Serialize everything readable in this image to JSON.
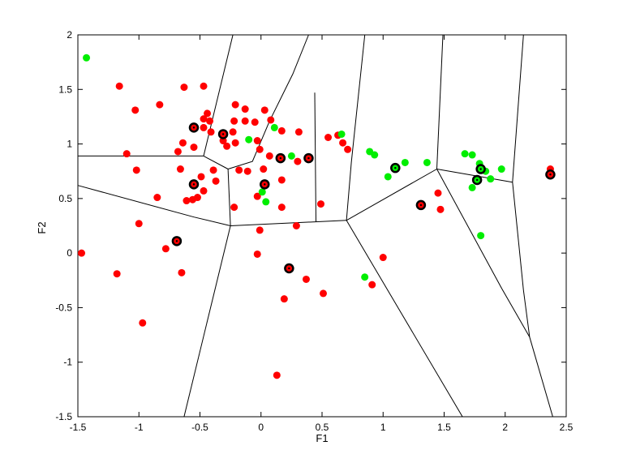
{
  "figure": {
    "background_color": "#FFFFFF",
    "plot_background_color": "#FFFFFF",
    "axis_color": "#000000"
  },
  "chart_data": {
    "type": "scatter",
    "title": "",
    "xlabel": "F1",
    "ylabel": "F2",
    "xlim": [
      -1.5,
      2.5
    ],
    "ylim": [
      -1.5,
      2
    ],
    "x_ticks": [
      -1.5,
      -1,
      -0.5,
      0,
      0.5,
      1,
      1.5,
      2,
      2.5
    ],
    "y_ticks": [
      -1.5,
      -1,
      -0.5,
      0,
      0.5,
      1,
      1.5,
      2
    ],
    "grid": false,
    "legend": "none",
    "line_color": "#000000",
    "series": [
      {
        "name": "class-red-samples",
        "marker": "filled-circle",
        "color": "#FF0000",
        "points": [
          [
            -1.16,
            1.53
          ],
          [
            -0.63,
            1.52
          ],
          [
            -0.47,
            1.53
          ],
          [
            -0.83,
            1.36
          ],
          [
            -1.03,
            1.31
          ],
          [
            -0.21,
            1.36
          ],
          [
            -0.13,
            1.32
          ],
          [
            0.03,
            1.31
          ],
          [
            -0.44,
            1.28
          ],
          [
            -0.47,
            1.23
          ],
          [
            -0.42,
            1.21
          ],
          [
            -0.22,
            1.21
          ],
          [
            -0.13,
            1.21
          ],
          [
            -0.05,
            1.2
          ],
          [
            0.08,
            1.22
          ],
          [
            -0.47,
            1.15
          ],
          [
            -0.41,
            1.11
          ],
          [
            -0.23,
            1.11
          ],
          [
            0.17,
            1.12
          ],
          [
            0.31,
            1.11
          ],
          [
            -0.64,
            1.01
          ],
          [
            -0.55,
            0.97
          ],
          [
            -0.68,
            0.93
          ],
          [
            -1.1,
            0.91
          ],
          [
            -0.31,
            1.03
          ],
          [
            -0.03,
            1.03
          ],
          [
            -0.28,
            0.98
          ],
          [
            -0.21,
            1.01
          ],
          [
            -0.01,
            0.95
          ],
          [
            0.07,
            0.89
          ],
          [
            0.3,
            0.84
          ],
          [
            0.55,
            1.06
          ],
          [
            0.63,
            1.08
          ],
          [
            0.67,
            1.01
          ],
          [
            0.71,
            0.95
          ],
          [
            -1.02,
            0.76
          ],
          [
            -0.66,
            0.77
          ],
          [
            -0.49,
            0.7
          ],
          [
            -0.39,
            0.76
          ],
          [
            -0.18,
            0.76
          ],
          [
            -0.11,
            0.75
          ],
          [
            0.02,
            0.77
          ],
          [
            -0.37,
            0.66
          ],
          [
            -0.47,
            0.57
          ],
          [
            0.17,
            0.67
          ],
          [
            -0.85,
            0.51
          ],
          [
            -0.61,
            0.48
          ],
          [
            -0.56,
            0.49
          ],
          [
            -0.52,
            0.51
          ],
          [
            -0.03,
            0.52
          ],
          [
            -0.22,
            0.42
          ],
          [
            0.17,
            0.42
          ],
          [
            0.49,
            0.45
          ],
          [
            1.45,
            0.55
          ],
          [
            1.47,
            0.4
          ],
          [
            -1.0,
            0.27
          ],
          [
            0.29,
            0.25
          ],
          [
            -0.01,
            0.21
          ],
          [
            -0.78,
            0.04
          ],
          [
            -1.47,
            0.0
          ],
          [
            -0.03,
            -0.01
          ],
          [
            1.0,
            -0.04
          ],
          [
            -1.18,
            -0.19
          ],
          [
            -0.65,
            -0.18
          ],
          [
            0.37,
            -0.24
          ],
          [
            0.91,
            -0.29
          ],
          [
            0.19,
            -0.42
          ],
          [
            0.51,
            -0.37
          ],
          [
            -0.97,
            -0.64
          ],
          [
            0.13,
            -1.12
          ],
          [
            2.37,
            0.77
          ]
        ]
      },
      {
        "name": "class-green-samples",
        "marker": "filled-circle",
        "color": "#00EE00",
        "points": [
          [
            -1.43,
            1.79
          ],
          [
            0.11,
            1.15
          ],
          [
            -0.1,
            1.04
          ],
          [
            0.25,
            0.89
          ],
          [
            0.66,
            1.09
          ],
          [
            0.89,
            0.93
          ],
          [
            0.93,
            0.9
          ],
          [
            1.18,
            0.83
          ],
          [
            1.36,
            0.83
          ],
          [
            1.04,
            0.7
          ],
          [
            0.01,
            0.56
          ],
          [
            0.04,
            0.47
          ],
          [
            0.85,
            -0.22
          ],
          [
            1.67,
            0.91
          ],
          [
            1.73,
            0.9
          ],
          [
            1.79,
            0.82
          ],
          [
            1.97,
            0.77
          ],
          [
            1.84,
            0.75
          ],
          [
            1.88,
            0.68
          ],
          [
            1.73,
            0.6
          ],
          [
            1.8,
            0.16
          ]
        ]
      },
      {
        "name": "prototype-red-circled",
        "marker": "black-ringed-circle",
        "color": "#FF0000",
        "points": [
          [
            -0.55,
            1.15
          ],
          [
            -0.31,
            1.09
          ],
          [
            0.16,
            0.87
          ],
          [
            0.39,
            0.87
          ],
          [
            -0.55,
            0.63
          ],
          [
            0.03,
            0.63
          ],
          [
            -0.69,
            0.11
          ],
          [
            0.23,
            -0.14
          ],
          [
            1.31,
            0.44
          ],
          [
            2.37,
            0.72
          ]
        ]
      },
      {
        "name": "prototype-green-circled",
        "marker": "black-ringed-circle",
        "color": "#00EE00",
        "points": [
          [
            1.1,
            0.78
          ],
          [
            1.8,
            0.77
          ],
          [
            1.77,
            0.67
          ]
        ]
      }
    ],
    "voronoi_edges": [
      [
        [
          -1.5,
          0.89
        ],
        [
          -0.47,
          0.89
        ]
      ],
      [
        [
          -0.47,
          0.89
        ],
        [
          -0.23,
          2.0
        ]
      ],
      [
        [
          -1.5,
          0.62
        ],
        [
          -0.55,
          0.33
        ],
        [
          -0.25,
          0.25
        ]
      ],
      [
        [
          -0.47,
          0.89
        ],
        [
          -0.27,
          0.77
        ]
      ],
      [
        [
          -0.27,
          0.77
        ],
        [
          -0.25,
          0.25
        ]
      ],
      [
        [
          -0.27,
          0.77
        ],
        [
          -0.07,
          0.84
        ],
        [
          0.07,
          1.21
        ],
        [
          0.26,
          1.64
        ],
        [
          0.39,
          2.0
        ]
      ],
      [
        [
          0.44,
          1.47
        ],
        [
          0.45,
          0.29
        ]
      ],
      [
        [
          -0.25,
          0.25
        ],
        [
          0.7,
          0.3
        ]
      ],
      [
        [
          -0.25,
          0.25
        ],
        [
          -0.63,
          -1.5
        ]
      ],
      [
        [
          0.7,
          0.3
        ],
        [
          0.74,
          0.83
        ],
        [
          0.85,
          2.0
        ]
      ],
      [
        [
          0.7,
          0.3
        ],
        [
          1.65,
          -1.5
        ]
      ],
      [
        [
          0.7,
          0.3
        ],
        [
          1.44,
          0.77
        ]
      ],
      [
        [
          1.44,
          0.77
        ],
        [
          1.49,
          2.0
        ]
      ],
      [
        [
          1.44,
          0.77
        ],
        [
          2.06,
          0.65
        ]
      ],
      [
        [
          2.06,
          0.65
        ],
        [
          2.15,
          2.0
        ]
      ],
      [
        [
          2.06,
          0.65
        ],
        [
          2.15,
          -0.34
        ],
        [
          2.2,
          -0.77
        ]
      ],
      [
        [
          1.44,
          0.77
        ],
        [
          1.97,
          -0.32
        ],
        [
          2.2,
          -0.77
        ]
      ],
      [
        [
          2.2,
          -0.77
        ],
        [
          2.39,
          -1.5
        ]
      ]
    ]
  }
}
